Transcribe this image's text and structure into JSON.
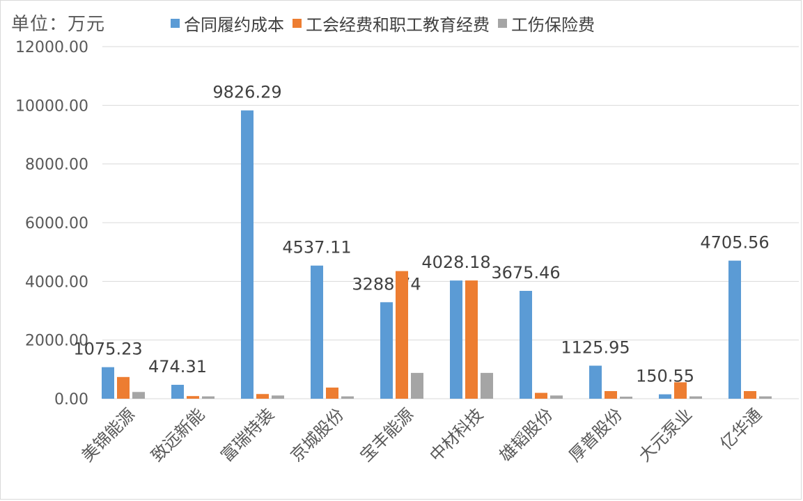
{
  "unit_label": "单位：万元",
  "legend": [
    {
      "name": "合同履约成本",
      "color": "#5b9bd5"
    },
    {
      "name": "工会经费和职工教育经费",
      "color": "#ed7d31"
    },
    {
      "name": "工伤保险费",
      "color": "#a5a5a5"
    }
  ],
  "chart_data": {
    "type": "bar",
    "title": "",
    "xlabel": "",
    "ylabel": "",
    "ylim": [
      0,
      12000
    ],
    "y_ticks": [
      "0.00",
      "2000.00",
      "4000.00",
      "6000.00",
      "8000.00",
      "10000.00",
      "12000.00"
    ],
    "grid": true,
    "legend_position": "top",
    "categories": [
      "美锦能源",
      "致远新能",
      "富瑞特装",
      "京城股份",
      "宝丰能源",
      "中材科技",
      "雄韬股份",
      "厚普股份",
      "大元泵业",
      "亿华通"
    ],
    "series": [
      {
        "name": "合同履约成本",
        "color": "#5b9bd5",
        "values": [
          1075.23,
          474.31,
          9826.29,
          4537.11,
          3288.74,
          4028.18,
          3675.46,
          1125.95,
          150.55,
          4705.56
        ],
        "labels": [
          "1075.23",
          "474.31",
          "9826.29",
          "4537.11",
          "3288.74",
          "4028.18",
          "3675.46",
          "1125.95",
          "150.55",
          "4705.56"
        ]
      },
      {
        "name": "工会经费和职工教育经费",
        "color": "#ed7d31",
        "values": [
          740,
          90,
          160,
          380,
          4350,
          4030,
          200,
          260,
          560,
          260
        ]
      },
      {
        "name": "工伤保险费",
        "color": "#a5a5a5",
        "values": [
          230,
          80,
          110,
          80,
          880,
          880,
          110,
          70,
          80,
          80
        ]
      }
    ]
  }
}
